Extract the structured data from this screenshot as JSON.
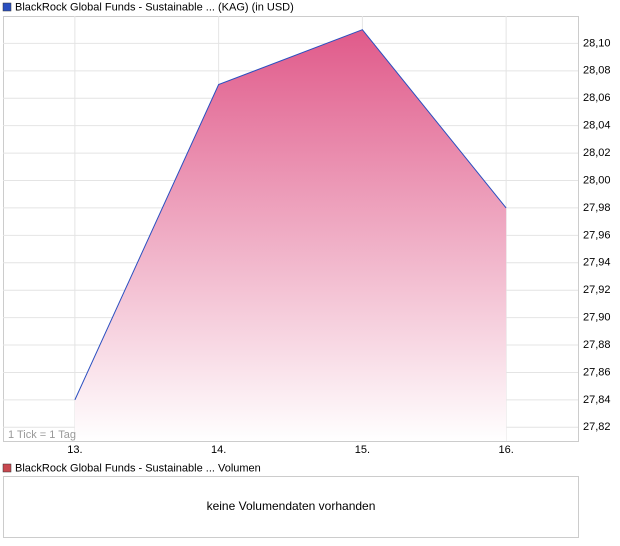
{
  "chart_data": {
    "type": "area",
    "categories": [
      "13.",
      "14.",
      "15.",
      "16."
    ],
    "series": [
      {
        "name": "BlackRock Global Funds - Sustainable ... (KAG) (in USD)",
        "color": "#2a4fc0",
        "fill_color": "#e05a8a",
        "values": [
          27.84,
          28.07,
          28.11,
          27.98
        ]
      }
    ],
    "ylim": [
      27.81,
      28.12
    ],
    "yticks": [
      {
        "value": 27.82,
        "label": "27,82"
      },
      {
        "value": 27.84,
        "label": "27,84"
      },
      {
        "value": 27.86,
        "label": "27,86"
      },
      {
        "value": 27.88,
        "label": "27,88"
      },
      {
        "value": 27.9,
        "label": "27,90"
      },
      {
        "value": 27.92,
        "label": "27,92"
      },
      {
        "value": 27.94,
        "label": "27,94"
      },
      {
        "value": 27.96,
        "label": "27,96"
      },
      {
        "value": 27.98,
        "label": "27,98"
      },
      {
        "value": 28.0,
        "label": "28,00"
      },
      {
        "value": 28.02,
        "label": "28,02"
      },
      {
        "value": 28.04,
        "label": "28,04"
      },
      {
        "value": 28.06,
        "label": "28,06"
      },
      {
        "value": 28.08,
        "label": "28,08"
      },
      {
        "value": 28.1,
        "label": "28,10"
      }
    ],
    "grid": true,
    "annotation": "1 Tick = 1 Tag",
    "volume_panel": {
      "name": "BlackRock Global Funds - Sustainable ... Volumen",
      "color": "#c8484f",
      "message": "keine Volumendaten vorhanden"
    }
  }
}
